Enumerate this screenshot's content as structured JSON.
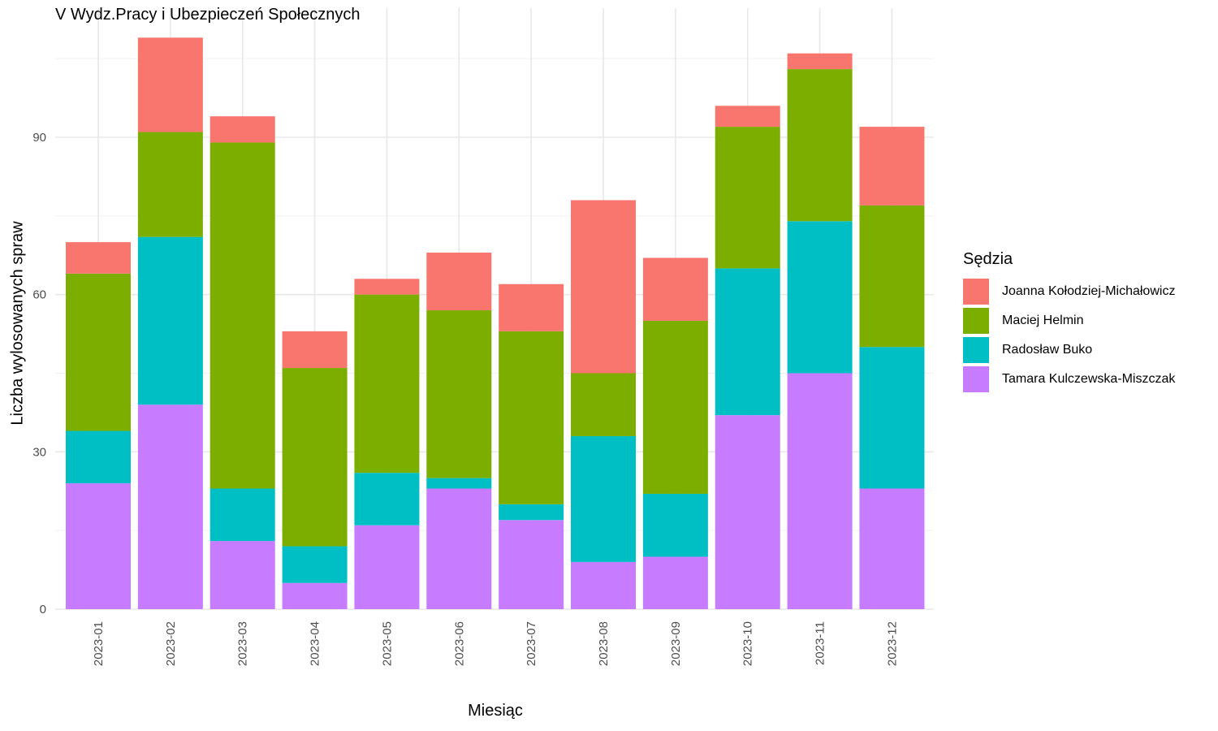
{
  "chart_data": {
    "type": "bar",
    "stacked": true,
    "title": "V Wydz.Pracy i Ubezpieczeń Społecznych",
    "xlabel": "Miesiąc",
    "ylabel": "Liczba wylosowanych spraw",
    "ylim": [
      0,
      110
    ],
    "yticks": [
      0,
      30,
      60,
      90
    ],
    "grid": true,
    "legend_title": "Sędzia",
    "legend_position": "right",
    "categories": [
      "2023-01",
      "2023-02",
      "2023-03",
      "2023-04",
      "2023-05",
      "2023-06",
      "2023-07",
      "2023-08",
      "2023-09",
      "2023-10",
      "2023-11",
      "2023-12"
    ],
    "series": [
      {
        "name": "Tamara Kulczewska-Miszczak",
        "color": "#C77CFF",
        "values": [
          24,
          39,
          13,
          5,
          16,
          23,
          17,
          9,
          10,
          37,
          45,
          23
        ]
      },
      {
        "name": "Radosław Buko",
        "color": "#00BFC4",
        "values": [
          10,
          32,
          10,
          7,
          10,
          2,
          3,
          24,
          12,
          28,
          29,
          27
        ]
      },
      {
        "name": "Maciej Helmin",
        "color": "#7CAE00",
        "values": [
          30,
          20,
          66,
          34,
          34,
          32,
          33,
          12,
          33,
          27,
          29,
          27
        ]
      },
      {
        "name": "Joanna Kołodziej-Michałowicz",
        "color": "#F8766D",
        "values": [
          6,
          18,
          5,
          7,
          3,
          11,
          9,
          33,
          12,
          4,
          3,
          15
        ]
      }
    ],
    "legend_order": [
      "Joanna Kołodziej-Michałowicz",
      "Maciej Helmin",
      "Radosław Buko",
      "Tamara Kulczewska-Miszczak"
    ]
  }
}
